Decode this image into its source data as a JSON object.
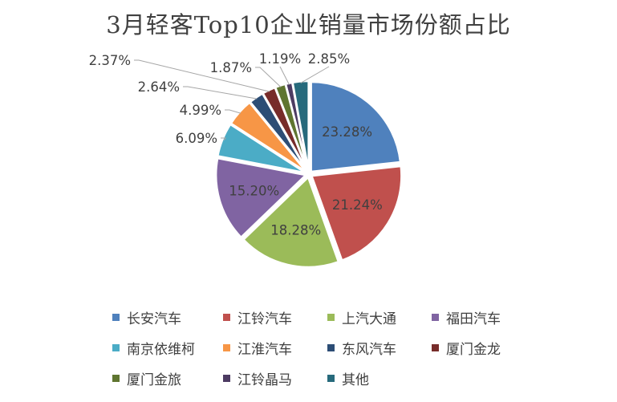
{
  "chart_data": {
    "type": "pie",
    "title": "3月轻客Top10企业销量市场份额占比",
    "categories": [
      "长安汽车",
      "江铃汽车",
      "上汽大通",
      "福田汽车",
      "南京依维柯",
      "江淮汽车",
      "东风汽车",
      "厦门金龙",
      "厦门金旅",
      "江铃晶马",
      "其他"
    ],
    "values": [
      23.28,
      21.24,
      18.28,
      15.2,
      6.09,
      4.99,
      2.64,
      2.37,
      1.87,
      1.19,
      2.85
    ],
    "labels": [
      "23.28%",
      "21.24%",
      "18.28%",
      "15.20%",
      "6.09%",
      "4.99%",
      "2.64%",
      "2.37%",
      "1.87%",
      "1.19%",
      "2.85%"
    ],
    "colors": [
      "#4F81BD",
      "#C0504D",
      "#9BBB59",
      "#8064A2",
      "#4BACC6",
      "#F79646",
      "#2C4D75",
      "#772C2A",
      "#5F7530",
      "#4D3B62",
      "#276A7C"
    ],
    "legend_position": "bottom"
  }
}
